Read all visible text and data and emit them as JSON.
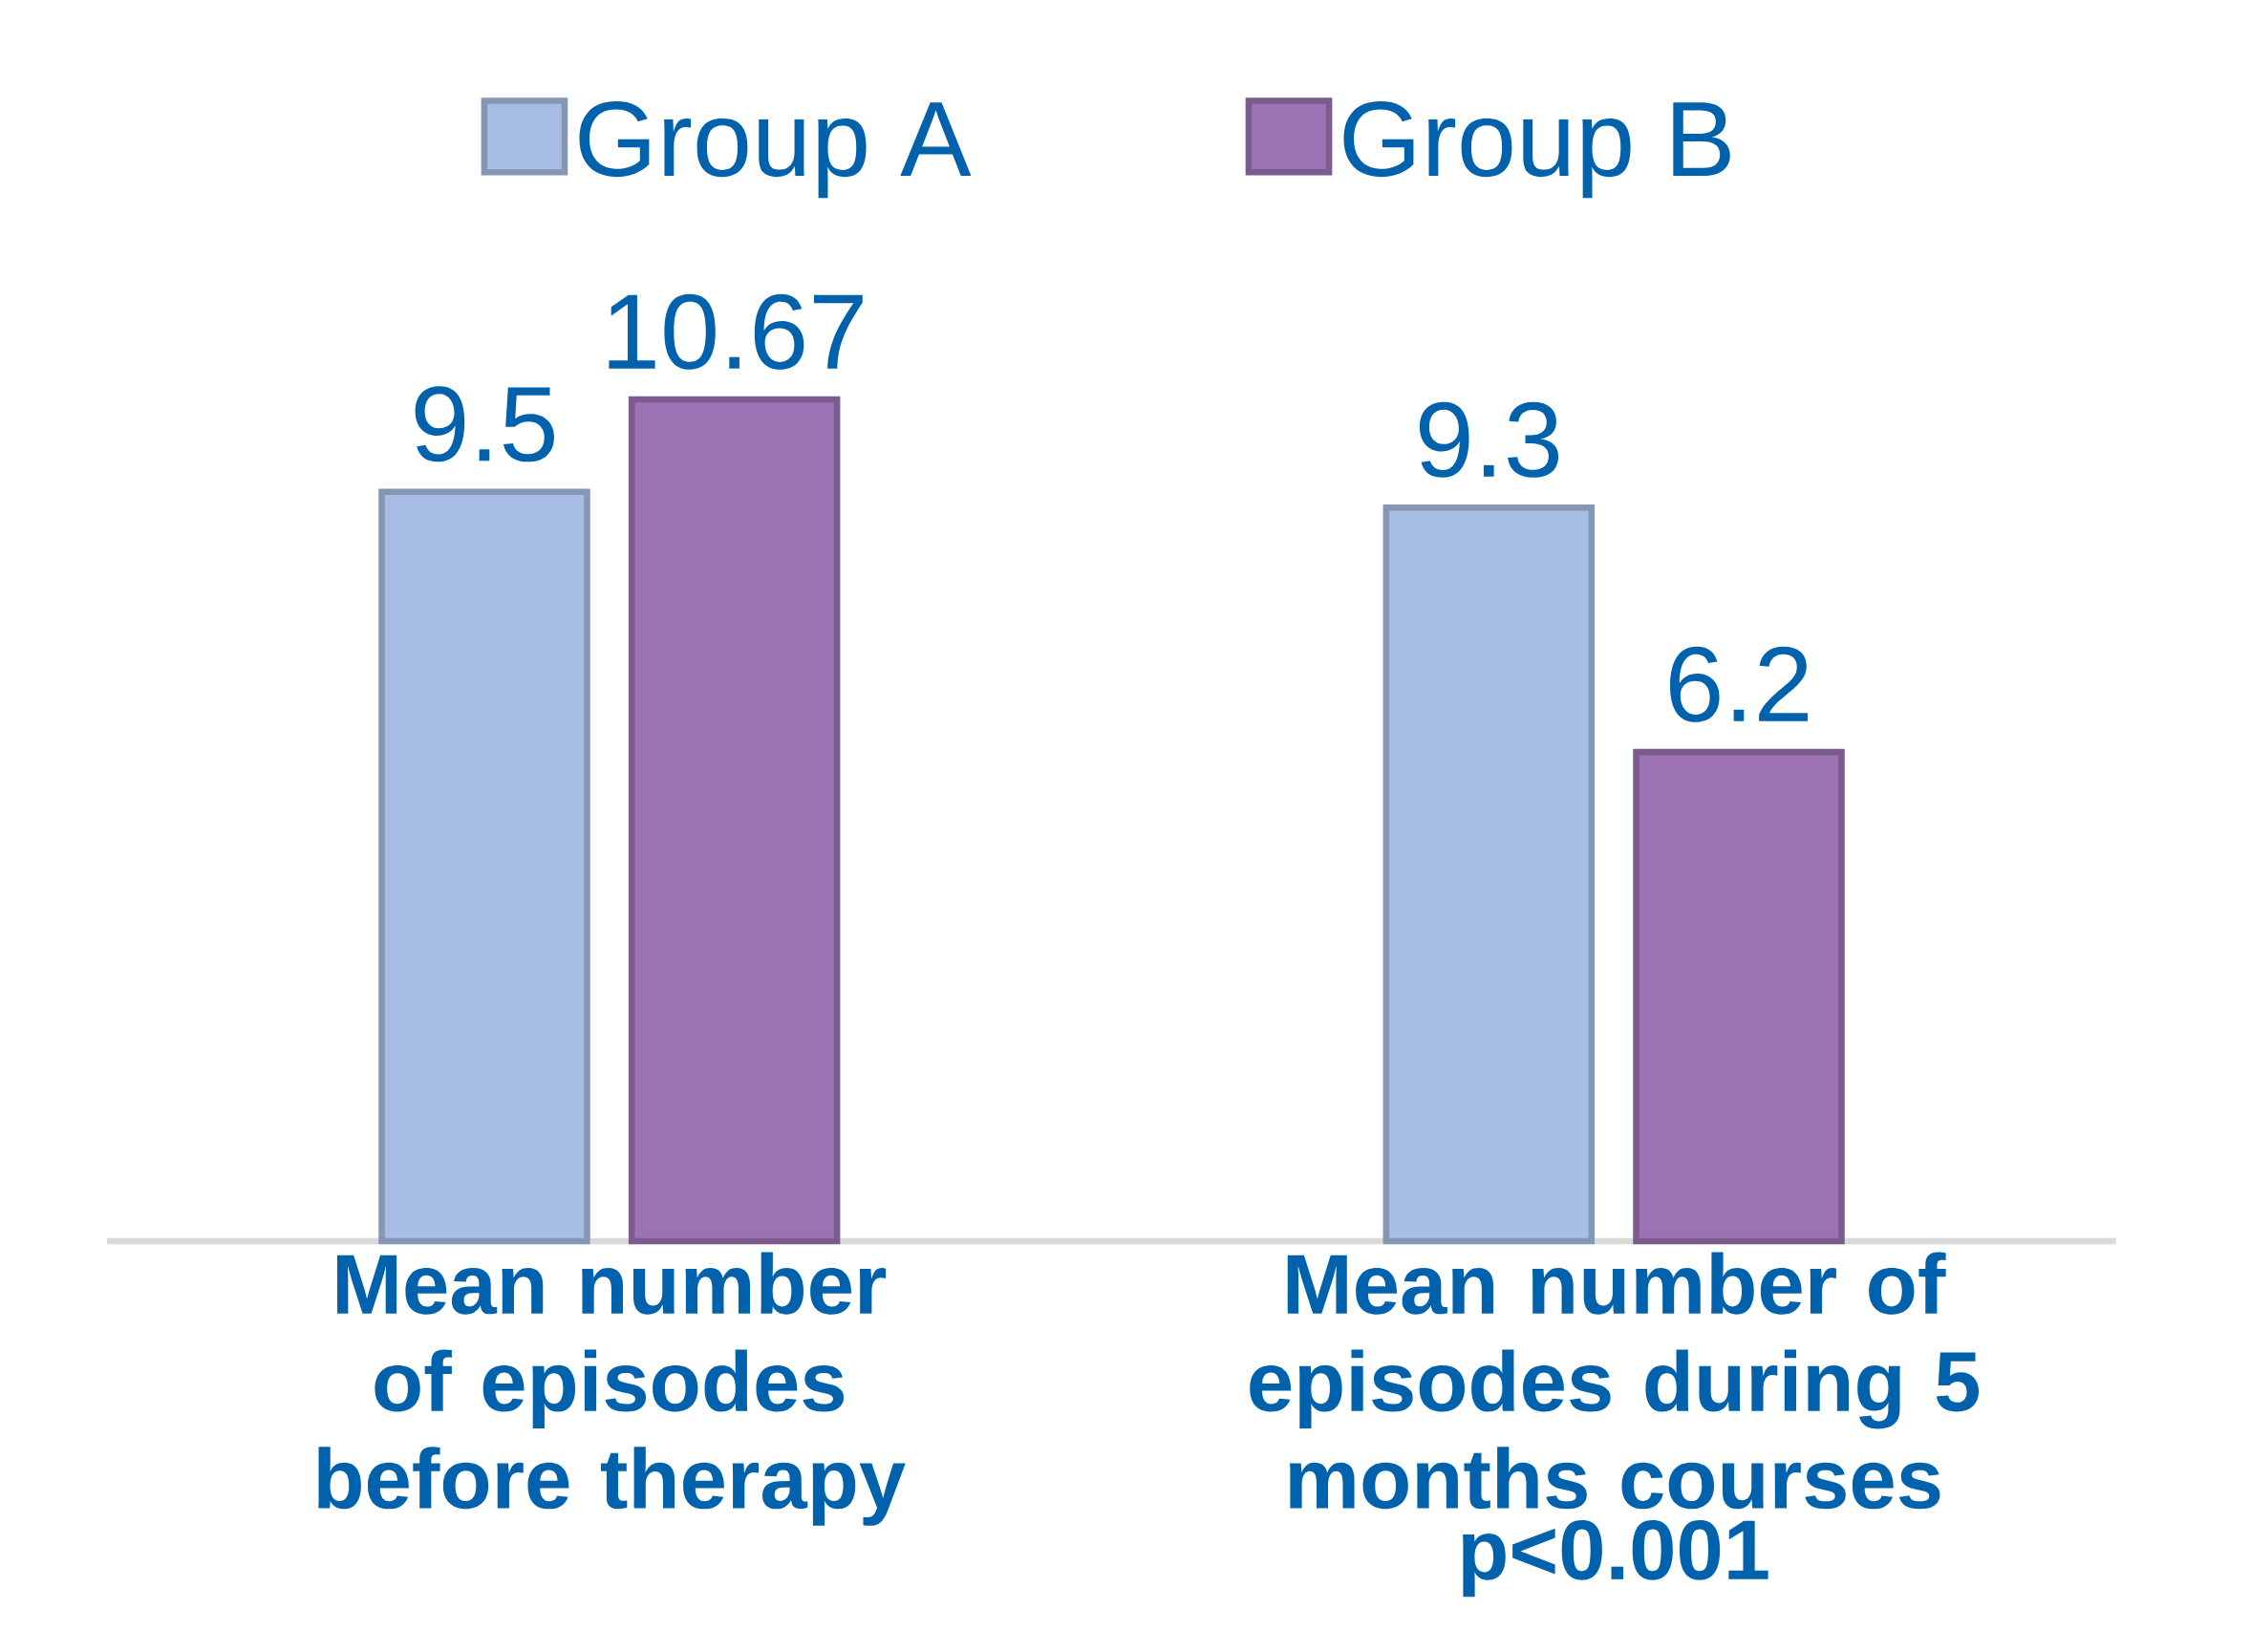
{
  "chart_data": {
    "type": "bar",
    "categories": [
      "Mean number of episodes before therapy",
      "Mean number of episodes during 5 months courses"
    ],
    "series": [
      {
        "name": "Group A",
        "color": "#a8bde3",
        "values": [
          9.5,
          9.3
        ]
      },
      {
        "name": "Group B",
        "color": "#9b72b3",
        "values": [
          10.67,
          6.2
        ]
      }
    ],
    "data_labels": true,
    "legend": "top",
    "annotations": [
      "p<0.001"
    ]
  }
}
